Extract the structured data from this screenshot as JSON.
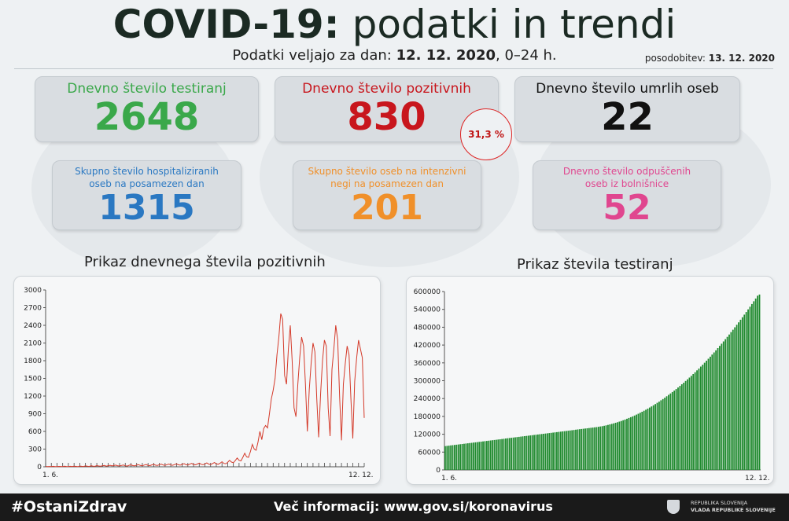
{
  "header": {
    "title_bold": "COVID-19:",
    "title_rest": "podatki in trendi",
    "subtitle_prefix": "Podatki veljajo za dan:",
    "subtitle_date": "12. 12. 2020",
    "subtitle_suffix": ", 0–24 h.",
    "updated_label": "posodobitev:",
    "updated_date": "13. 12. 2020"
  },
  "cards": {
    "tests": {
      "label": "Dnevno število testiranj",
      "value": "2648",
      "color": "#3aa84a"
    },
    "positive": {
      "label": "Dnevno število pozitivnih",
      "value": "830",
      "color": "#c8161d",
      "percent": "31,3 %"
    },
    "deaths": {
      "label": "Dnevno število umrlih oseb",
      "value": "22",
      "color": "#111111"
    },
    "hospitalized": {
      "label_line1": "Skupno število hospitaliziranih",
      "label_line2": "oseb na posamezen dan",
      "value": "1315",
      "color": "#2a78c2"
    },
    "icu": {
      "label_line1": "Skupno število oseb na intenzivni",
      "label_line2": "negi na posamezen dan",
      "value": "201",
      "color": "#f0902a"
    },
    "discharged": {
      "label_line1": "Dnevno število odpuščenih",
      "label_line2": "oseb iz bolnišnice",
      "value": "52",
      "color": "#e0468f"
    }
  },
  "footer": {
    "hashtag": "#OstaniZdrav",
    "info": "Več informacij: www.gov.si/koronavirus",
    "gov_line1": "REPUBLIKA SLOVENIJA",
    "gov_line2": "VLADA REPUBLIKE SLOVENIJE"
  },
  "chart_data": [
    {
      "type": "line",
      "title": "Prikaz dnevnega števila pozitivnih",
      "color": "#d43a2a",
      "ylim": [
        0,
        3000
      ],
      "yticks": [
        0,
        300,
        600,
        900,
        1200,
        1500,
        1800,
        2100,
        2400,
        2700,
        3000
      ],
      "x_start_label": "1. 6.",
      "x_end_label": "12. 12.",
      "grid": false,
      "values": [
        5,
        2,
        6,
        3,
        8,
        4,
        2,
        7,
        5,
        3,
        9,
        6,
        4,
        8,
        5,
        10,
        7,
        3,
        12,
        8,
        6,
        14,
        9,
        5,
        17,
        11,
        8,
        20,
        13,
        9,
        16,
        22,
        11,
        19,
        25,
        14,
        21,
        28,
        17,
        15,
        23,
        30,
        18,
        12,
        26,
        33,
        20,
        16,
        28,
        35,
        22,
        18,
        30,
        38,
        24,
        20,
        32,
        41,
        27,
        22,
        34,
        44,
        29,
        25,
        36,
        47,
        31,
        26,
        38,
        50,
        33,
        28,
        41,
        53,
        36,
        30,
        44,
        57,
        39,
        33,
        47,
        62,
        42,
        35,
        50,
        66,
        45,
        38,
        54,
        72,
        49,
        42,
        60,
        85,
        58,
        52,
        75,
        110,
        80,
        70,
        105,
        150,
        110,
        100,
        160,
        230,
        170,
        160,
        260,
        380,
        300,
        280,
        420,
        600,
        460,
        650,
        700,
        660,
        900,
        1150,
        1300,
        1500,
        1900,
        2200,
        2600,
        2500,
        1550,
        1400,
        2000,
        2400,
        1800,
        1000,
        850,
        1400,
        1850,
        2200,
        2050,
        1400,
        600,
        1300,
        1750,
        2100,
        1950,
        1150,
        500,
        1250,
        1800,
        2150,
        2050,
        1000,
        520,
        1650,
        2000,
        2400,
        2150,
        1200,
        450,
        1400,
        1750,
        2050,
        1900,
        1150,
        480,
        1450,
        1850,
        2150,
        2000,
        1850,
        830
      ]
    },
    {
      "type": "bar",
      "title": "Prikaz števila testiranj",
      "color": "#1f8a2e",
      "ylim": [
        0,
        600000
      ],
      "yticks": [
        0,
        60000,
        120000,
        180000,
        240000,
        300000,
        360000,
        420000,
        480000,
        540000,
        600000
      ],
      "x_start_label": "1. 6.",
      "x_end_label": "12. 12.",
      "grid": false,
      "values": [
        80000,
        80800,
        81600,
        82400,
        83200,
        84000,
        84800,
        85600,
        86400,
        87200,
        88000,
        88800,
        89600,
        90400,
        91200,
        92000,
        92800,
        93600,
        94400,
        95200,
        96000,
        96800,
        97600,
        98400,
        99200,
        100000,
        100800,
        101600,
        102400,
        103200,
        104000,
        104800,
        105600,
        106400,
        107200,
        108000,
        108800,
        109600,
        110400,
        111200,
        112000,
        112800,
        113600,
        114400,
        115200,
        116000,
        116800,
        117600,
        118400,
        119200,
        120000,
        120800,
        121600,
        122400,
        123200,
        124000,
        124800,
        125600,
        126400,
        127200,
        128000,
        128800,
        129600,
        130400,
        131200,
        132000,
        132800,
        133600,
        134400,
        135200,
        136000,
        136800,
        137600,
        138400,
        139200,
        140000,
        140800,
        141600,
        142400,
        143200,
        144000,
        145000,
        146100,
        147300,
        148600,
        150000,
        151500,
        153100,
        154800,
        156600,
        158500,
        160500,
        162600,
        164800,
        167100,
        169500,
        172000,
        174600,
        177300,
        180100,
        183000,
        186000,
        189100,
        192300,
        195600,
        199000,
        202500,
        206100,
        209800,
        213600,
        217500,
        221500,
        225600,
        229800,
        234100,
        238500,
        243000,
        247600,
        252300,
        257100,
        262000,
        267000,
        272100,
        277300,
        282600,
        288000,
        293500,
        299100,
        304800,
        310600,
        316500,
        322500,
        328600,
        334800,
        341100,
        347500,
        354000,
        360600,
        367300,
        374100,
        381000,
        388000,
        395100,
        402300,
        409600,
        417000,
        424500,
        432100,
        439800,
        447600,
        455500,
        463500,
        471600,
        479800,
        488100,
        496500,
        505000,
        513600,
        522300,
        531100,
        540000,
        549000,
        558100,
        567300,
        576600,
        586000,
        590000
      ]
    }
  ]
}
